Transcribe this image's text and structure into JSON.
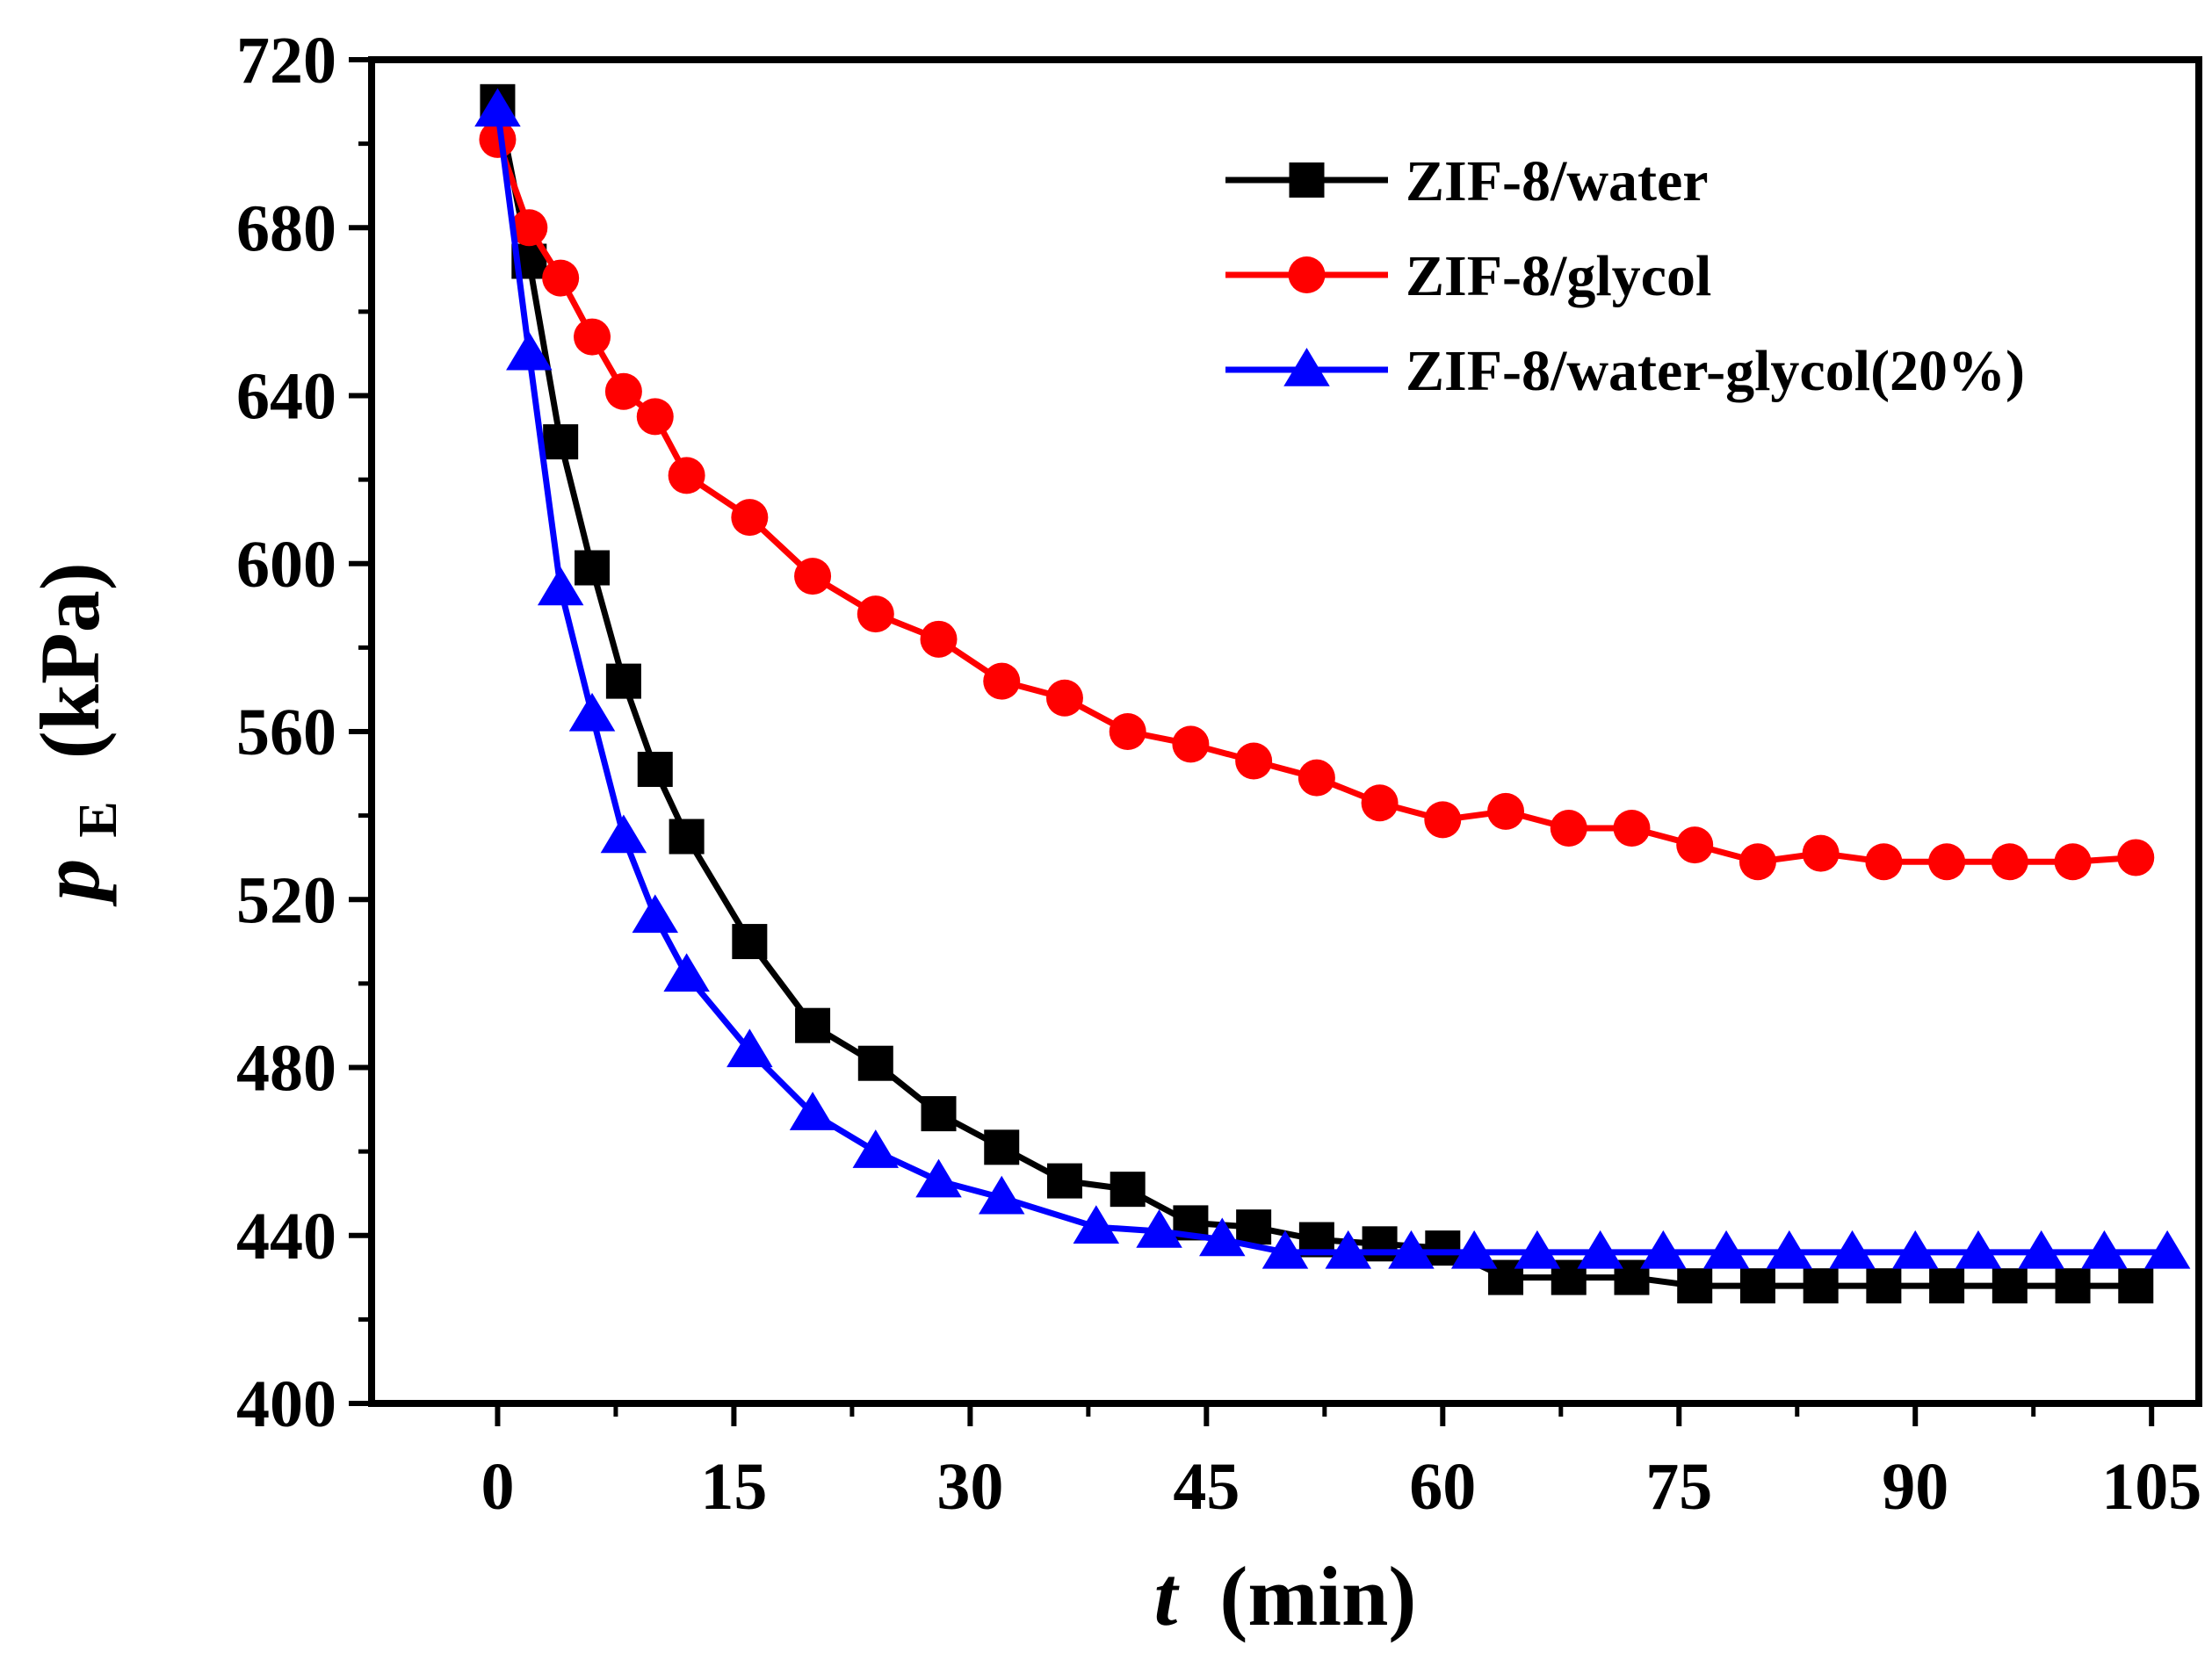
{
  "chart_data": {
    "type": "line",
    "title": "",
    "xlabel": "t",
    "xlabel_unit": "(min)",
    "ylabel": "p",
    "ylabel_sub": "E",
    "ylabel_unit": "(kPa)",
    "xlim": [
      -8,
      108
    ],
    "ylim": [
      400,
      720
    ],
    "xticks": [
      0,
      15,
      30,
      45,
      60,
      75,
      90,
      105
    ],
    "yticks": [
      400,
      440,
      480,
      520,
      560,
      600,
      640,
      680,
      720
    ],
    "xtick_labels": [
      "0",
      "15",
      "30",
      "45",
      "60",
      "75",
      "90",
      "105"
    ],
    "ytick_labels": [
      "400",
      "440",
      "480",
      "520",
      "560",
      "600",
      "640",
      "680",
      "720"
    ],
    "legend_position": "top-right",
    "series": [
      {
        "name": "ZIF-8/water",
        "color": "#000000",
        "marker": "square",
        "x": [
          0,
          2,
          4,
          6,
          8,
          10,
          12,
          16,
          20,
          24,
          28,
          32,
          36,
          40,
          44,
          48,
          52,
          56,
          60,
          64,
          68,
          72,
          76,
          80,
          84,
          88,
          92,
          96,
          100,
          104
        ],
        "y": [
          710,
          672,
          629,
          599,
          572,
          551,
          535,
          510,
          490,
          481,
          469,
          461,
          453,
          451,
          443,
          442,
          439,
          438,
          437,
          430,
          430,
          430,
          428,
          428,
          428,
          428,
          428,
          428,
          428,
          428
        ]
      },
      {
        "name": "ZIF-8/glycol",
        "color": "#ff0000",
        "marker": "circle",
        "x": [
          0,
          2,
          4,
          6,
          8,
          10,
          12,
          16,
          20,
          24,
          28,
          32,
          36,
          40,
          44,
          48,
          52,
          56,
          60,
          64,
          68,
          72,
          76,
          80,
          84,
          88,
          92,
          96,
          100,
          104
        ],
        "y": [
          701,
          680,
          668,
          654,
          641,
          635,
          621,
          611,
          597,
          588,
          582,
          572,
          568,
          560,
          557,
          553,
          549,
          543,
          539,
          541,
          537,
          537,
          533,
          529,
          531,
          529,
          529,
          529,
          529,
          530
        ]
      },
      {
        "name": "ZIF-8/water-glycol(20%)",
        "color": "#0000ff",
        "marker": "triangle",
        "x": [
          0,
          2,
          4,
          6,
          8,
          10,
          12,
          16,
          20,
          24,
          28,
          32,
          38,
          42,
          46,
          50,
          54,
          58,
          62,
          66,
          70,
          74,
          78,
          82,
          86,
          90,
          94,
          98,
          102,
          106
        ],
        "y": [
          708,
          650,
          594,
          564,
          535,
          516,
          502,
          484,
          469,
          460,
          453,
          449,
          442,
          441,
          439,
          436,
          436,
          436,
          436,
          436,
          436,
          436,
          436,
          436,
          436,
          436,
          436,
          436,
          436,
          436
        ]
      }
    ]
  }
}
